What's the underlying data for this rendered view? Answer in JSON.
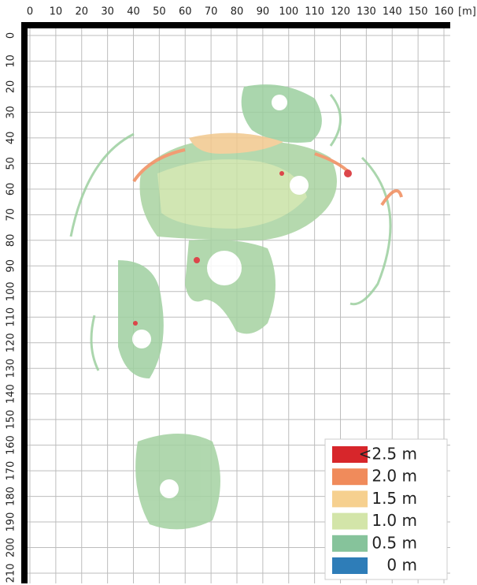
{
  "x_axis": {
    "lim": [
      0,
      160
    ],
    "ticks": [
      0,
      10,
      20,
      30,
      40,
      50,
      60,
      70,
      80,
      90,
      100,
      110,
      120,
      130,
      140,
      150,
      160
    ],
    "unit": "[m]"
  },
  "y_axis": {
    "lim": [
      0,
      210
    ],
    "ticks": [
      0,
      10,
      20,
      30,
      40,
      50,
      60,
      70,
      80,
      90,
      100,
      110,
      120,
      130,
      140,
      150,
      160,
      170,
      180,
      190,
      200,
      210
    ]
  },
  "legend": {
    "items": [
      {
        "label": "<2.5 m",
        "color": "#d7262b"
      },
      {
        "label": "2.0 m",
        "color": "#f08b5b"
      },
      {
        "label": "1.5 m",
        "color": "#f6d08f"
      },
      {
        "label": "1.0 m",
        "color": "#d3e5a9"
      },
      {
        "label": "0.5 m",
        "color": "#86c39b"
      },
      {
        "label": "0 m",
        "color": "#2e7db8"
      }
    ]
  }
}
